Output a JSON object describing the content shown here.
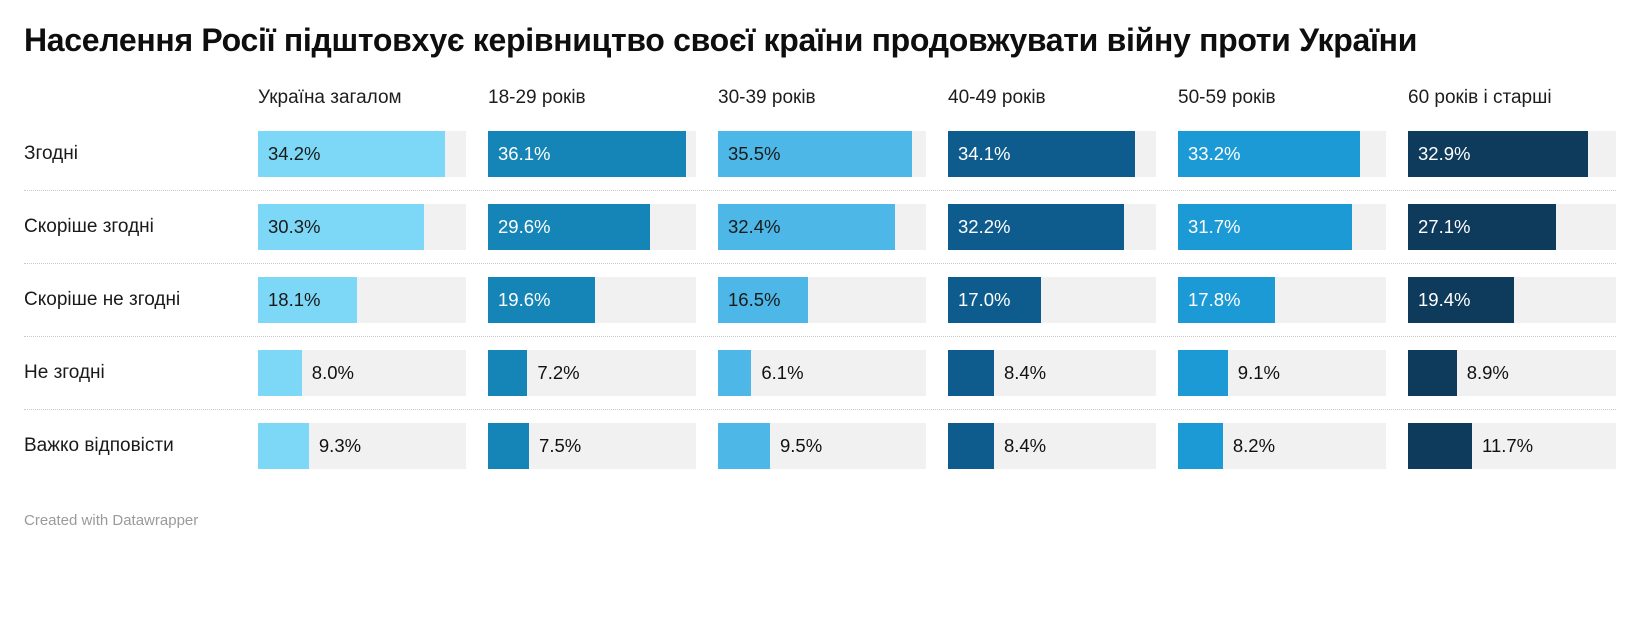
{
  "title": "Населення Росії підштовхує керівництво своєї країни продовжувати війну проти України",
  "footer": {
    "attribution": "Created with Datawrapper"
  },
  "chart_data": {
    "type": "bar",
    "title": "Населення Росії підштовхує керівництво своєї країни продовжувати війну проти України",
    "value_suffix": "%",
    "scale_max": 38,
    "inside_label_min": 12,
    "track_color": "#f1f1f1",
    "separator_style": "dotted",
    "row_categories": [
      "Згодні",
      "Скоріше згодні",
      "Скоріше не згодні",
      "Не згодні",
      "Важко відповісти"
    ],
    "columns": [
      {
        "label": "Україна загалом",
        "color": "#7cd8f6",
        "label_color": "#1a1a1a",
        "values": [
          34.2,
          30.3,
          18.1,
          8.0,
          9.3
        ]
      },
      {
        "label": "18-29 років",
        "color": "#1585b8",
        "label_color": "#ffffff",
        "values": [
          36.1,
          29.6,
          19.6,
          7.2,
          7.5
        ]
      },
      {
        "label": "30-39 років",
        "color": "#4db8e8",
        "label_color": "#1a1a1a",
        "values": [
          35.5,
          32.4,
          16.5,
          6.1,
          9.5
        ]
      },
      {
        "label": "40-49 років",
        "color": "#0e5c8d",
        "label_color": "#ffffff",
        "values": [
          34.1,
          32.2,
          17.0,
          8.4,
          8.4
        ]
      },
      {
        "label": "50-59 років",
        "color": "#1c9ad6",
        "label_color": "#ffffff",
        "values": [
          33.2,
          31.7,
          17.8,
          9.1,
          8.2
        ]
      },
      {
        "label": "60 років і старші",
        "color": "#0e3a5c",
        "label_color": "#ffffff",
        "values": [
          32.9,
          27.1,
          19.4,
          8.9,
          11.7
        ]
      }
    ]
  }
}
